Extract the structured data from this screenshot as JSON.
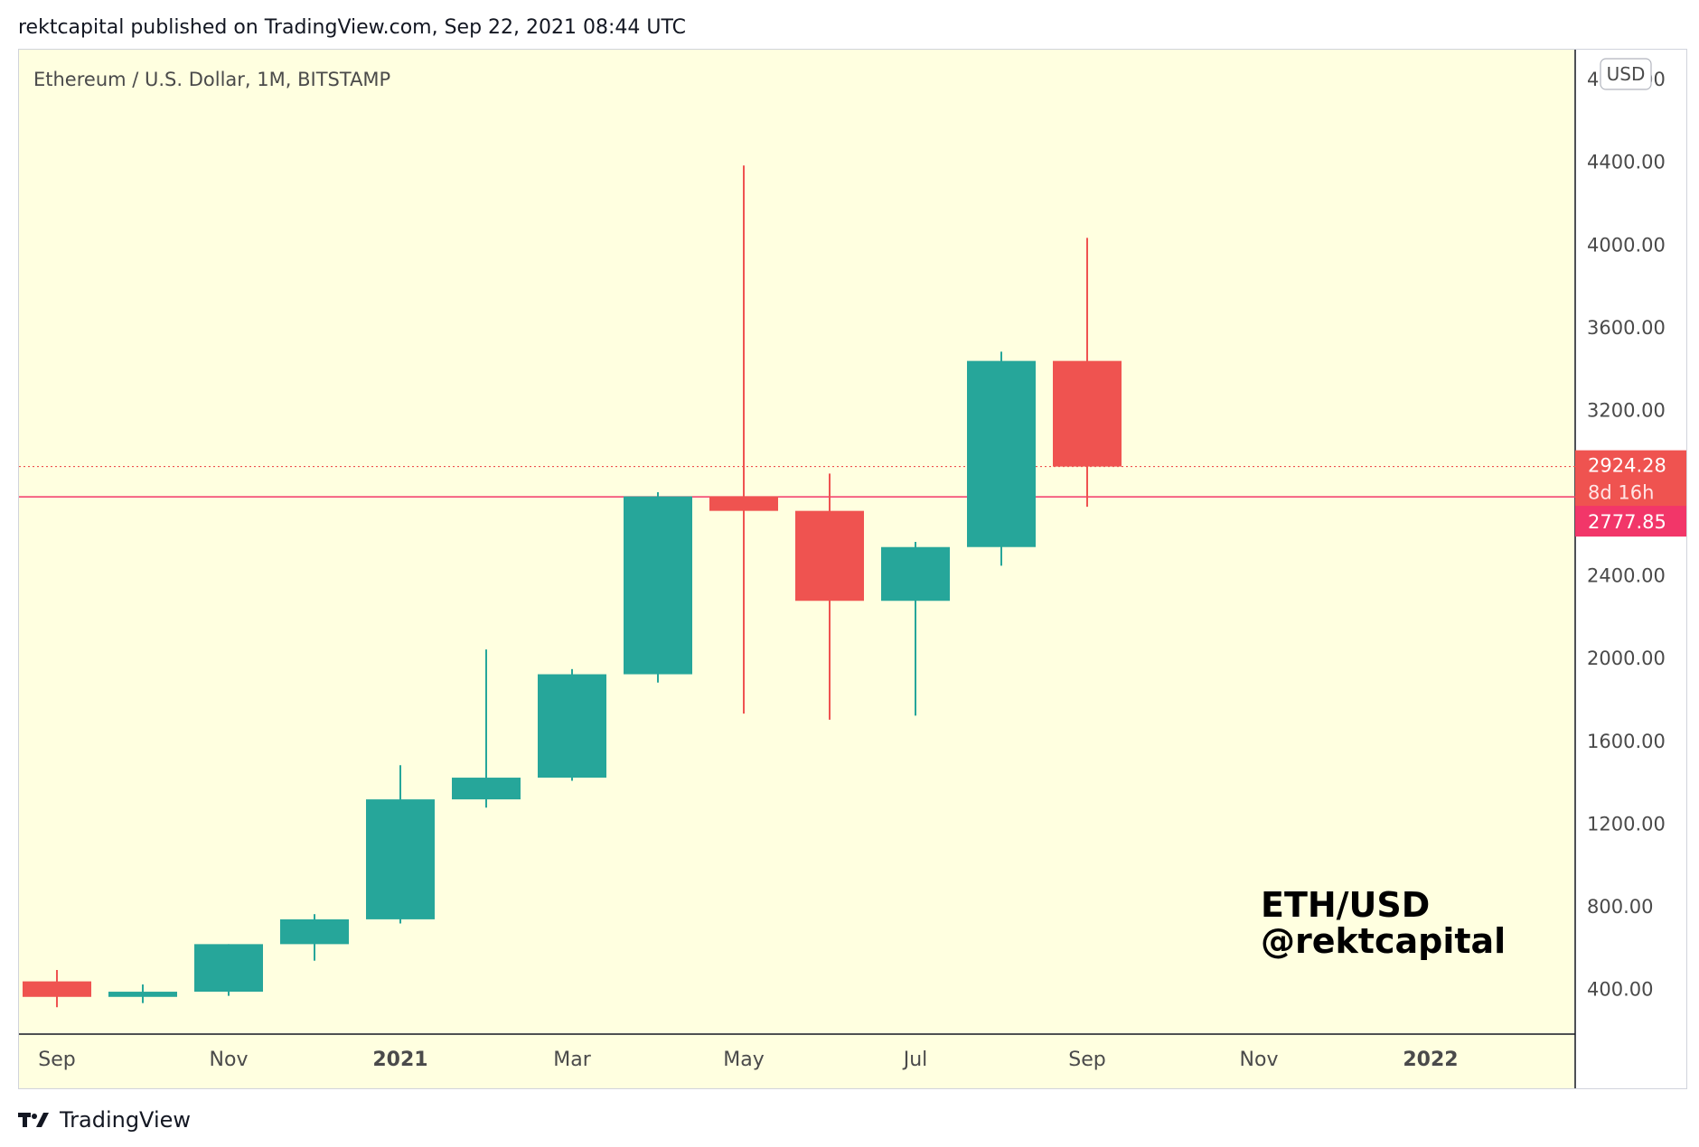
{
  "header": {
    "published_text": "rektcapital published on TradingView.com, Sep 22, 2021 08:44 UTC"
  },
  "footer": {
    "brand": "TradingView"
  },
  "colors": {
    "plot_background": "#ffffe0",
    "up": "#26a69a",
    "down": "#ef5350",
    "current_price": "#ef5350",
    "previous_close": "#f23669",
    "axis_text": "#4a4a4a",
    "axis_line": "#131722"
  },
  "chart_data": {
    "type": "candlestick",
    "title": "Ethereum / U.S. Dollar, 1M, BITSTAMP",
    "watermark": [
      "ETH/USD",
      "@rektcapital"
    ],
    "currency_label": "USD",
    "y_ticks": [
      400,
      800,
      1200,
      1600,
      2000,
      2400,
      2800,
      3200,
      3600,
      4000,
      4400,
      4800
    ],
    "y_tick_labels": [
      "400.00",
      "800.00",
      "1200.00",
      "1600.00",
      "2000.00",
      "2400.00",
      "",
      "3200.00",
      "3600.00",
      "4000.00",
      "4400.00",
      "4800.00"
    ],
    "ylim": [
      180,
      4940
    ],
    "x_ticks": [
      {
        "index": 0,
        "label": "Sep",
        "bold": false
      },
      {
        "index": 2,
        "label": "Nov",
        "bold": false
      },
      {
        "index": 4,
        "label": "2021",
        "bold": true
      },
      {
        "index": 6,
        "label": "Mar",
        "bold": false
      },
      {
        "index": 8,
        "label": "May",
        "bold": false
      },
      {
        "index": 10,
        "label": "Jul",
        "bold": false
      },
      {
        "index": 12,
        "label": "Sep",
        "bold": false
      },
      {
        "index": 14,
        "label": "Nov",
        "bold": false
      },
      {
        "index": 16,
        "label": "2022",
        "bold": true
      }
    ],
    "candles": [
      {
        "month": "2020-09",
        "open": 435,
        "high": 490,
        "low": 310,
        "close": 360
      },
      {
        "month": "2020-10",
        "open": 360,
        "high": 420,
        "low": 330,
        "close": 385
      },
      {
        "month": "2020-11",
        "open": 385,
        "high": 615,
        "low": 365,
        "close": 615
      },
      {
        "month": "2020-12",
        "open": 615,
        "high": 760,
        "low": 535,
        "close": 735
      },
      {
        "month": "2021-01",
        "open": 735,
        "high": 1480,
        "low": 715,
        "close": 1315
      },
      {
        "month": "2021-02",
        "open": 1315,
        "high": 2040,
        "low": 1275,
        "close": 1420
      },
      {
        "month": "2021-03",
        "open": 1420,
        "high": 1945,
        "low": 1405,
        "close": 1920
      },
      {
        "month": "2021-04",
        "open": 1920,
        "high": 2800,
        "low": 1880,
        "close": 2780
      },
      {
        "month": "2021-05",
        "open": 2780,
        "high": 4380,
        "low": 1730,
        "close": 2710
      },
      {
        "month": "2021-06",
        "open": 2710,
        "high": 2890,
        "low": 1700,
        "close": 2275
      },
      {
        "month": "2021-07",
        "open": 2275,
        "high": 2560,
        "low": 1720,
        "close": 2535
      },
      {
        "month": "2021-08",
        "open": 2535,
        "high": 3480,
        "low": 2445,
        "close": 3435
      },
      {
        "month": "2021-09",
        "open": 3435,
        "high": 4030,
        "low": 2730,
        "close": 2924.28
      }
    ],
    "current_price": {
      "value": 2924.28,
      "label": "2924.28",
      "countdown": "8d 16h"
    },
    "previous_close": {
      "value": 2777.85,
      "label": "2777.85"
    }
  }
}
